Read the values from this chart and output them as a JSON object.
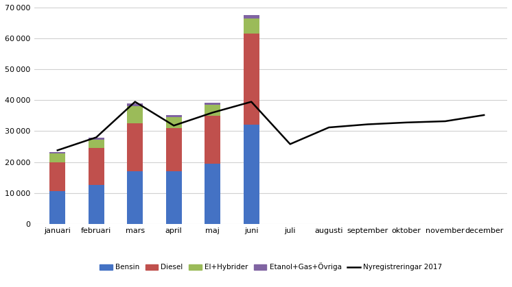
{
  "months": [
    "januari",
    "februari",
    "mars",
    "april",
    "maj",
    "juni",
    "juli",
    "augusti",
    "september",
    "oktober",
    "november",
    "december"
  ],
  "bensin": [
    10500,
    12500,
    17000,
    17000,
    19500,
    32000,
    0,
    0,
    0,
    0,
    0,
    0
  ],
  "diesel": [
    9500,
    12000,
    15500,
    14000,
    15500,
    29500,
    0,
    0,
    0,
    0,
    0,
    0
  ],
  "el_hybrid": [
    2800,
    2800,
    5500,
    3600,
    3500,
    5000,
    0,
    0,
    0,
    0,
    0,
    0
  ],
  "etanol_gas": [
    500,
    500,
    900,
    700,
    700,
    1000,
    0,
    0,
    0,
    0,
    0,
    0
  ],
  "line_2017": [
    23800,
    28000,
    39500,
    31800,
    36000,
    39500,
    25800,
    31200,
    32200,
    32800,
    33200,
    35200
  ],
  "colors": {
    "bensin": "#4472C4",
    "diesel": "#C0504D",
    "el_hybrid": "#9BBB59",
    "etanol_gas": "#8064A2"
  },
  "ylim": [
    0,
    70000
  ],
  "yticks": [
    0,
    10000,
    20000,
    30000,
    40000,
    50000,
    60000,
    70000
  ],
  "ytick_labels": [
    "0",
    "10 000",
    "20 000",
    "30 000",
    "40 000",
    "50 000",
    "60 000",
    "70 000"
  ],
  "legend_labels": [
    "Bensin",
    "Diesel",
    "El+Hybrider",
    "Etanol+Gas+Övriga",
    "Nyregistreringar 2017"
  ],
  "background_color": "#ffffff",
  "grid_color": "#d0d0d0",
  "bar_width": 0.4
}
